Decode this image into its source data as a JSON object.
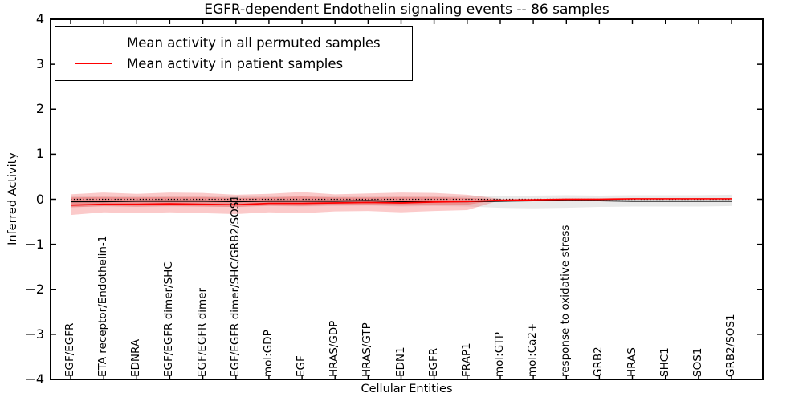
{
  "title": "EGFR-dependent Endothelin signaling events -- 86 samples",
  "legend": {
    "entries": [
      {
        "label": "Mean activity in all permuted samples",
        "color": "#000000"
      },
      {
        "label": "Mean activity in patient samples",
        "color": "#ff0000"
      }
    ]
  },
  "axes": {
    "xlabel": "Cellular Entities",
    "ylabel": "Inferred Activity",
    "ylim": [
      -4,
      4
    ],
    "yticks": [
      {
        "value": 4,
        "label": "4"
      },
      {
        "value": 3,
        "label": "3"
      },
      {
        "value": 2,
        "label": "2"
      },
      {
        "value": 1,
        "label": "1"
      },
      {
        "value": 0,
        "label": "0"
      },
      {
        "value": -1,
        "label": "−1"
      },
      {
        "value": -2,
        "label": "−2"
      },
      {
        "value": -3,
        "label": "−3"
      },
      {
        "value": -4,
        "label": "−4"
      }
    ]
  },
  "chart_data": {
    "type": "line",
    "title": "EGFR-dependent Endothelin signaling events -- 86 samples",
    "xlabel": "Cellular Entities",
    "ylabel": "Inferred Activity",
    "ylim": [
      -4,
      4
    ],
    "grid": false,
    "legend_position": "upper left",
    "categories": [
      "EGF/EGFR",
      "ETA receptor/Endothelin-1",
      "EDNRA",
      "EGF/EGFR dimer/SHC",
      "EGF/EGFR dimer",
      "EGF/EGFR dimer/SHC/GRB2/SOS1",
      "mol:GDP",
      "EGF",
      "HRAS/GDP",
      "HRAS/GTP",
      "EDN1",
      "EGFR",
      "FRAP1",
      "mol:GTP",
      "mol:Ca2+",
      "response to oxidative stress",
      "GRB2",
      "HRAS",
      "SHC1",
      "SOS1",
      "GRB2/SOS1"
    ],
    "series": [
      {
        "name": "Mean activity in all permuted samples",
        "color": "#000000",
        "line_style": "solid",
        "values": [
          -0.05,
          -0.05,
          -0.04,
          -0.04,
          -0.04,
          -0.05,
          -0.04,
          -0.04,
          -0.04,
          -0.03,
          -0.05,
          -0.05,
          -0.05,
          -0.04,
          -0.03,
          -0.03,
          -0.03,
          -0.04,
          -0.04,
          -0.04,
          -0.04
        ]
      },
      {
        "name": "Mean activity in patient samples",
        "color": "#ff0000",
        "line_style": "solid",
        "values": [
          -0.13,
          -0.11,
          -0.11,
          -0.1,
          -0.11,
          -0.12,
          -0.09,
          -0.09,
          -0.08,
          -0.07,
          -0.08,
          -0.06,
          -0.05,
          -0.02,
          -0.01,
          0.0,
          0.0,
          0.01,
          0.01,
          0.01,
          0.01
        ]
      },
      {
        "name": "zero reference",
        "color": "#000000",
        "line_style": "dotted",
        "values": [
          0,
          0,
          0,
          0,
          0,
          0,
          0,
          0,
          0,
          0,
          0,
          0,
          0,
          0,
          0,
          0,
          0,
          0,
          0,
          0,
          0
        ]
      }
    ],
    "bands": [
      {
        "name": "permuted-sample-spread",
        "color": "rgba(125,125,125,0.17)",
        "upper": [
          0.07,
          0.07,
          0.07,
          0.07,
          0.07,
          0.07,
          0.07,
          0.07,
          0.06,
          0.06,
          0.07,
          0.07,
          0.07,
          0.08,
          0.08,
          0.09,
          0.08,
          0.09,
          0.09,
          0.09,
          0.1
        ],
        "lower": [
          -0.17,
          -0.16,
          -0.17,
          -0.16,
          -0.16,
          -0.17,
          -0.15,
          -0.16,
          -0.15,
          -0.14,
          -0.16,
          -0.15,
          -0.16,
          -0.19,
          -0.2,
          -0.19,
          -0.17,
          -0.16,
          -0.16,
          -0.16,
          -0.15
        ]
      },
      {
        "name": "patient-sample-spread-outer",
        "color": "rgba(242,60,60,0.27)",
        "upper": [
          0.11,
          0.15,
          0.12,
          0.15,
          0.14,
          0.1,
          0.12,
          0.16,
          0.11,
          0.13,
          0.15,
          0.14,
          0.1,
          0.01,
          null,
          null,
          null,
          null,
          null,
          null,
          null
        ],
        "lower": [
          -0.35,
          -0.29,
          -0.31,
          -0.29,
          -0.31,
          -0.33,
          -0.29,
          -0.31,
          -0.27,
          -0.26,
          -0.29,
          -0.26,
          -0.24,
          -0.02,
          null,
          null,
          null,
          null,
          null,
          null,
          null
        ]
      },
      {
        "name": "patient-sample-spread-inner",
        "color": "rgba(242,60,60,0.32)",
        "upper": [
          0.04,
          0.05,
          0.04,
          0.05,
          0.05,
          0.03,
          0.04,
          0.06,
          0.04,
          0.04,
          0.05,
          0.05,
          0.03,
          0.0,
          null,
          null,
          null,
          null,
          null,
          null,
          null
        ],
        "lower": [
          -0.18,
          -0.15,
          -0.16,
          -0.15,
          -0.16,
          -0.17,
          -0.14,
          -0.15,
          -0.13,
          -0.13,
          -0.14,
          -0.13,
          -0.12,
          -0.01,
          null,
          null,
          null,
          null,
          null,
          null,
          null
        ]
      }
    ]
  }
}
